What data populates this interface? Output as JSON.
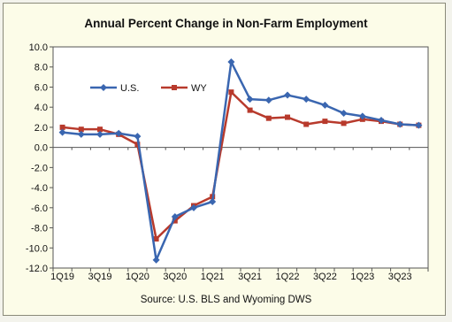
{
  "chart_data": {
    "type": "line",
    "title": "Annual Percent Change in Non-Farm Employment",
    "source": "Source: U.S. BLS and Wyoming DWS",
    "x": [
      "1Q19",
      "2Q19",
      "3Q19",
      "4Q19",
      "1Q20",
      "2Q20",
      "3Q20",
      "4Q20",
      "1Q21",
      "2Q21",
      "3Q21",
      "4Q21",
      "1Q22",
      "2Q22",
      "3Q22",
      "4Q22",
      "1Q23",
      "2Q23",
      "3Q23",
      "4Q23"
    ],
    "xtick_labels": [
      "1Q19",
      "3Q19",
      "1Q20",
      "3Q20",
      "1Q21",
      "3Q21",
      "1Q22",
      "3Q22",
      "1Q23",
      "3Q23"
    ],
    "ylim": [
      -12.0,
      10.0
    ],
    "yticks": [
      "10.0",
      "8.0",
      "6.0",
      "4.0",
      "2.0",
      "0.0",
      "-2.0",
      "-4.0",
      "-6.0",
      "-8.0",
      "-10.0",
      "-12.0"
    ],
    "legend": "top-left",
    "series": [
      {
        "name": "U.S.",
        "color": "#3a66b0",
        "marker": "diamond",
        "values": [
          1.5,
          1.3,
          1.3,
          1.4,
          1.1,
          -11.2,
          -6.9,
          -6.0,
          -5.4,
          8.5,
          4.8,
          4.7,
          5.2,
          4.8,
          4.2,
          3.4,
          3.1,
          2.7,
          2.3,
          2.2
        ]
      },
      {
        "name": "WY",
        "color": "#b83a2c",
        "marker": "square",
        "values": [
          2.0,
          1.8,
          1.8,
          1.3,
          0.3,
          -9.1,
          -7.3,
          -5.8,
          -4.9,
          5.5,
          3.7,
          2.9,
          3.0,
          2.3,
          2.6,
          2.4,
          2.8,
          2.6,
          2.3,
          2.2
        ]
      }
    ]
  }
}
